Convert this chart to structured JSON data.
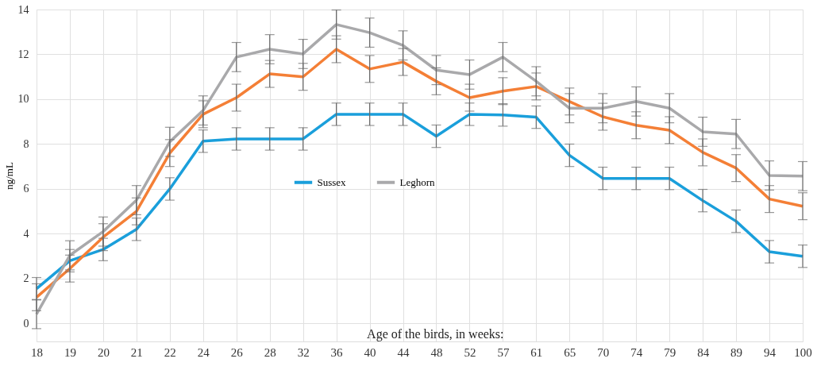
{
  "chart_data": {
    "type": "line",
    "xlabel": "Age of the birds, in weeks:",
    "ylabel": "ng/mL",
    "categories": [
      "18",
      "19",
      "20",
      "21",
      "22",
      "24",
      "26",
      "28",
      "32",
      "36",
      "40",
      "44",
      "48",
      "52",
      "57",
      "61",
      "65",
      "70",
      "74",
      "79",
      "84",
      "89",
      "94",
      "100"
    ],
    "series": [
      {
        "name": "Sussex",
        "color": "#1a9fdb",
        "values": [
          1.55,
          2.8,
          3.3,
          4.2,
          6.0,
          8.13,
          8.23,
          8.23,
          8.23,
          9.33,
          9.33,
          9.33,
          8.35,
          9.33,
          9.3,
          9.2,
          7.5,
          6.47,
          6.47,
          6.47,
          5.48,
          4.56,
          3.2,
          3.0
        ],
        "errors": [
          0.5,
          0.5,
          0.5,
          0.5,
          0.5,
          0.5,
          0.5,
          0.5,
          0.5,
          0.5,
          0.5,
          0.5,
          0.5,
          0.5,
          0.5,
          0.5,
          0.5,
          0.5,
          0.5,
          0.5,
          0.5,
          0.5,
          0.5,
          0.5
        ]
      },
      {
        "color": "#f47f36",
        "values": [
          1.17,
          2.45,
          3.85,
          5.0,
          7.6,
          9.33,
          10.07,
          11.13,
          11.0,
          12.23,
          11.35,
          11.66,
          10.8,
          10.07,
          10.36,
          10.57,
          9.9,
          9.22,
          8.84,
          8.62,
          7.63,
          6.93,
          5.55,
          5.23
        ],
        "errors": [
          0.6,
          0.6,
          0.6,
          0.6,
          0.6,
          0.6,
          0.6,
          0.6,
          0.6,
          0.6,
          0.6,
          0.6,
          0.6,
          0.6,
          0.6,
          0.6,
          0.6,
          0.6,
          0.6,
          0.6,
          0.6,
          0.6,
          0.6,
          0.6
        ]
      },
      {
        "name": "Leghorn",
        "color": "#a9a9ab",
        "values": [
          0.42,
          3.04,
          4.1,
          5.5,
          8.1,
          9.5,
          11.88,
          12.23,
          12.02,
          13.33,
          12.97,
          12.4,
          11.3,
          11.1,
          11.88,
          10.8,
          9.6,
          9.6,
          9.9,
          9.6,
          8.55,
          8.45,
          6.6,
          6.57
        ],
        "errors": [
          0.65,
          0.65,
          0.65,
          0.65,
          0.65,
          0.65,
          0.65,
          0.65,
          0.65,
          0.65,
          0.65,
          0.65,
          0.65,
          0.65,
          0.65,
          0.65,
          0.65,
          0.65,
          0.65,
          0.65,
          0.65,
          0.65,
          0.65,
          0.65
        ]
      }
    ],
    "ylim": [
      -0.8,
      14
    ],
    "yticks": [
      0,
      2,
      4,
      6,
      8,
      10,
      12,
      14
    ],
    "grid": true,
    "legend": "center",
    "marker": "none",
    "line_style": "solid"
  }
}
